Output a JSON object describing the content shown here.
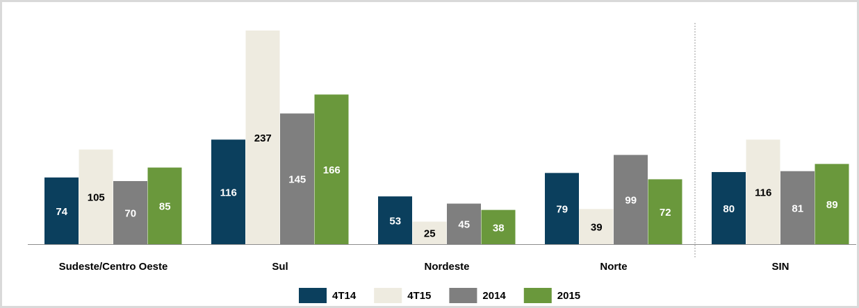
{
  "chart_data": {
    "type": "bar",
    "categories": [
      "Sudeste/Centro Oeste",
      "Sul",
      "Nordeste",
      "Norte",
      "SIN"
    ],
    "series": [
      {
        "name": "4T14",
        "color": "#0b3f5d",
        "values": [
          74,
          116,
          53,
          79,
          80
        ]
      },
      {
        "name": "4T15",
        "color": "#eeebe0",
        "values": [
          105,
          237,
          25,
          39,
          116
        ]
      },
      {
        "name": "2014",
        "color": "#7f7f7f",
        "values": [
          70,
          145,
          45,
          99,
          81
        ]
      },
      {
        "name": "2015",
        "color": "#6a983c",
        "values": [
          85,
          166,
          38,
          72,
          89
        ]
      }
    ],
    "legend": "bottom"
  }
}
